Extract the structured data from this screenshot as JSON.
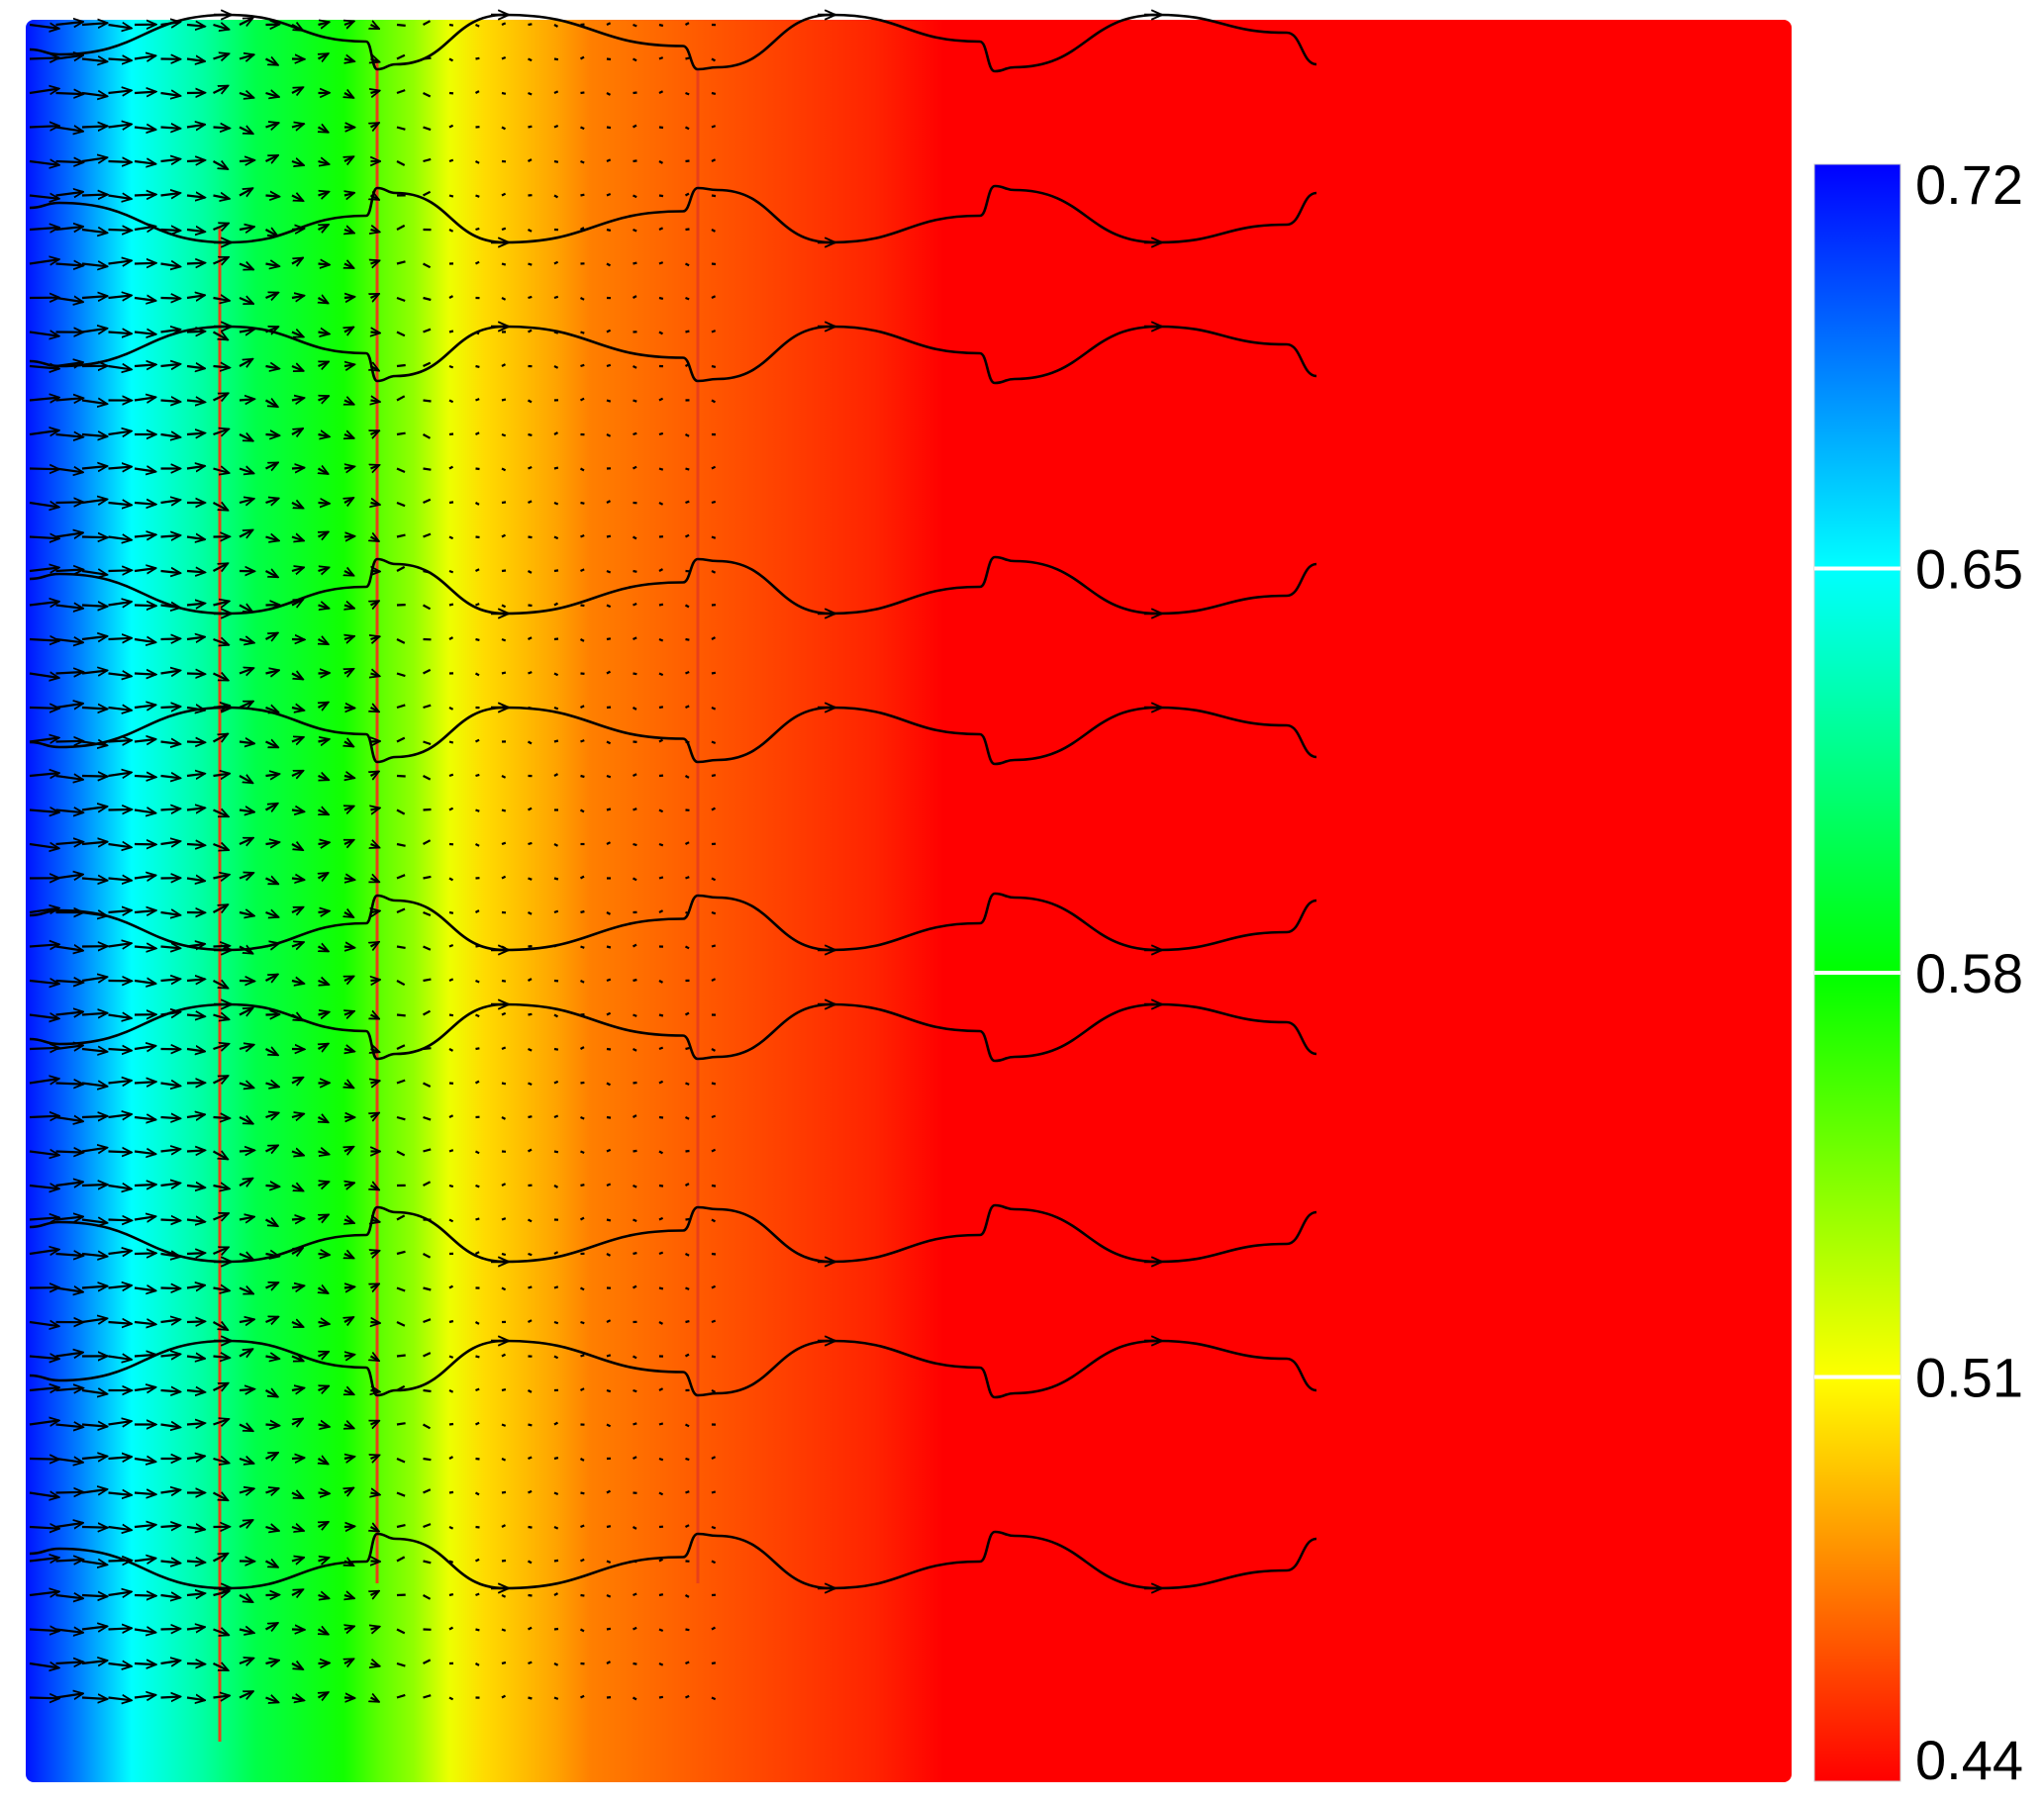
{
  "chart_data": {
    "type": "heatmap",
    "title": "",
    "xlabel": "",
    "ylabel": "",
    "colorbar": {
      "min": 0.44,
      "max": 0.72,
      "ticks": [
        {
          "value": 0.72,
          "label": "0.72"
        },
        {
          "value": 0.65,
          "label": "0.65"
        },
        {
          "value": 0.58,
          "label": "0.58"
        },
        {
          "value": 0.51,
          "label": "0.51"
        },
        {
          "value": 0.44,
          "label": "0.44"
        }
      ],
      "colormap": [
        "#0000ff",
        "#00ffff",
        "#00ff00",
        "#ffff00",
        "#ff0000"
      ]
    },
    "field_profile_x_fraction": [
      0.0,
      0.03,
      0.06,
      0.1,
      0.13,
      0.18,
      0.2,
      0.22,
      0.24,
      0.26,
      0.3,
      0.32,
      0.38,
      0.48,
      0.52,
      1.0
    ],
    "field_profile_values": [
      0.715,
      0.685,
      0.65,
      0.625,
      0.6,
      0.575,
      0.555,
      0.54,
      0.515,
      0.5,
      0.485,
      0.475,
      0.465,
      0.45,
      0.44,
      0.44
    ],
    "grid": false,
    "legend": "colorbar right"
  }
}
